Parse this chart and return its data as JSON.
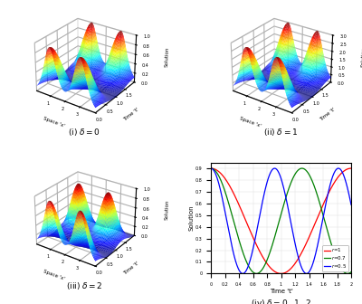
{
  "xlabel_3d": "Space 'x'",
  "ylabel_3d": "Time 't'",
  "zlabel_3d": "Solution",
  "x_range": [
    0,
    4
  ],
  "t_range": [
    0,
    2
  ],
  "captions_3d": [
    "(i) $\\delta = 0$",
    "(ii) $\\delta = 1$",
    "(iii) $\\delta = 2$"
  ],
  "caption_4": "(iv) $\\delta = 0, \\ 1, \\ 2$",
  "line_colors": [
    "red",
    "green",
    "blue"
  ],
  "line_labels": [
    "$r$=1",
    "$r$=0.7",
    "$r$=0.5"
  ],
  "line_xlabel": "Time 't'",
  "line_ylabel": "Solution",
  "line_xlim": [
    0,
    2
  ],
  "line_ylim": [
    0,
    0.95
  ],
  "delta0_amp": 1.0,
  "delta0_freq": 0.5,
  "delta1_amp": 3.0,
  "delta1_freq": 0.5,
  "delta2_amp": 1.0,
  "delta2_freq": 0.75,
  "red_freq": 0.5,
  "green_freq": 0.77,
  "blue_freq": 1.1,
  "red_amp": 0.9,
  "green_amp": 0.9,
  "blue_amp": 0.9
}
